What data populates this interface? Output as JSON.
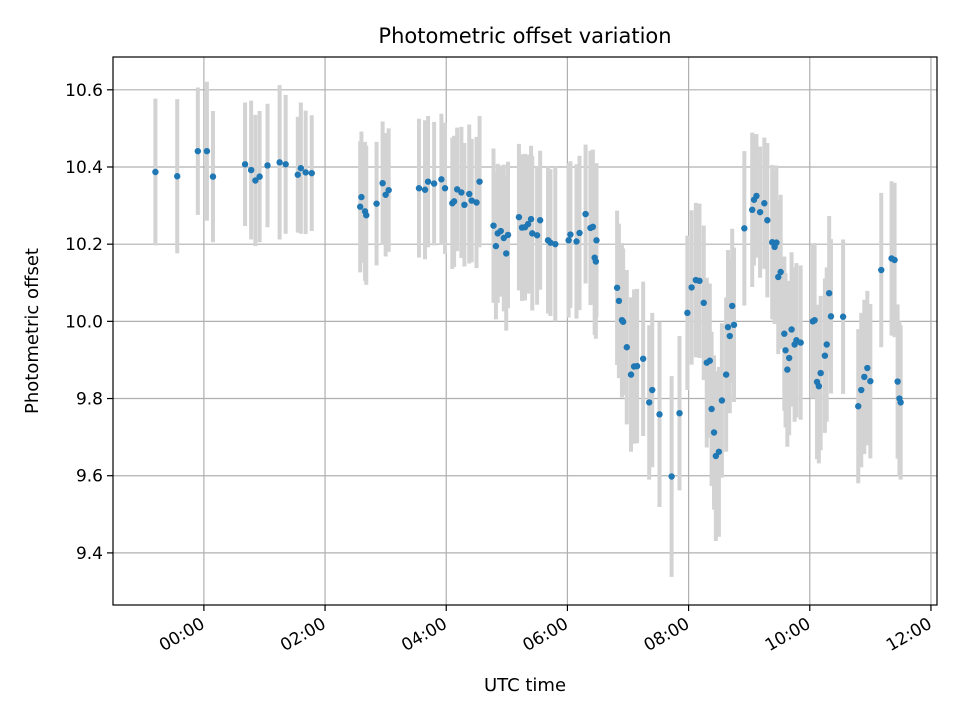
{
  "chart_data": {
    "type": "scatter",
    "title": "Photometric offset variation",
    "xlabel": "UTC time",
    "ylabel": "Photometric offset",
    "x_unit": "UTC hours",
    "xlim": [
      22.5,
      36.1
    ],
    "ylim": [
      9.265,
      10.685
    ],
    "x_ticks": [
      {
        "value": 24,
        "label": "00:00"
      },
      {
        "value": 26,
        "label": "02:00"
      },
      {
        "value": 28,
        "label": "04:00"
      },
      {
        "value": 30,
        "label": "06:00"
      },
      {
        "value": 32,
        "label": "08:00"
      },
      {
        "value": 34,
        "label": "10:00"
      },
      {
        "value": 36,
        "label": "12:00"
      }
    ],
    "y_ticks": [
      {
        "value": 9.4,
        "label": "9.4"
      },
      {
        "value": 9.6,
        "label": "9.6"
      },
      {
        "value": 9.8,
        "label": "9.8"
      },
      {
        "value": 10.0,
        "label": "10.0"
      },
      {
        "value": 10.2,
        "label": "10.2"
      },
      {
        "value": 10.4,
        "label": "10.4"
      },
      {
        "value": 10.6,
        "label": "10.6"
      }
    ],
    "grid": true,
    "marker_color": "#1f77b4",
    "errorbar_color": "#d3d3d3",
    "points": [
      [
        23.2,
        10.387,
        0.19
      ],
      [
        23.56,
        10.376,
        0.2
      ],
      [
        23.9,
        10.441,
        0.165
      ],
      [
        24.05,
        10.441,
        0.18
      ],
      [
        24.15,
        10.375,
        0.17
      ],
      [
        24.68,
        10.407,
        0.16
      ],
      [
        24.78,
        10.392,
        0.18
      ],
      [
        24.85,
        10.365,
        0.17
      ],
      [
        24.92,
        10.375,
        0.17
      ],
      [
        25.05,
        10.404,
        0.16
      ],
      [
        25.25,
        10.412,
        0.2
      ],
      [
        25.35,
        10.407,
        0.18
      ],
      [
        25.55,
        10.38,
        0.15
      ],
      [
        25.6,
        10.397,
        0.17
      ],
      [
        25.68,
        10.386,
        0.16
      ],
      [
        25.78,
        10.384,
        0.15
      ],
      [
        26.58,
        10.297,
        0.17
      ],
      [
        26.6,
        10.322,
        0.17
      ],
      [
        26.66,
        10.285,
        0.18
      ],
      [
        26.68,
        10.275,
        0.18
      ],
      [
        26.85,
        10.305,
        0.16
      ],
      [
        26.95,
        10.358,
        0.16
      ],
      [
        27.0,
        10.328,
        0.16
      ],
      [
        27.05,
        10.34,
        0.16
      ],
      [
        27.55,
        10.345,
        0.18
      ],
      [
        27.65,
        10.341,
        0.18
      ],
      [
        27.7,
        10.362,
        0.17
      ],
      [
        27.8,
        10.357,
        0.16
      ],
      [
        27.92,
        10.368,
        0.17
      ],
      [
        27.98,
        10.345,
        0.17
      ],
      [
        28.1,
        10.306,
        0.17
      ],
      [
        28.13,
        10.311,
        0.17
      ],
      [
        28.18,
        10.342,
        0.16
      ],
      [
        28.25,
        10.334,
        0.17
      ],
      [
        28.3,
        10.302,
        0.16
      ],
      [
        28.38,
        10.33,
        0.18
      ],
      [
        28.42,
        10.313,
        0.16
      ],
      [
        28.5,
        10.308,
        0.17
      ],
      [
        28.55,
        10.362,
        0.17
      ],
      [
        28.78,
        10.248,
        0.2
      ],
      [
        28.82,
        10.195,
        0.19
      ],
      [
        28.85,
        10.228,
        0.18
      ],
      [
        28.9,
        10.234,
        0.17
      ],
      [
        28.95,
        10.216,
        0.19
      ],
      [
        28.99,
        10.176,
        0.2
      ],
      [
        29.02,
        10.224,
        0.19
      ],
      [
        29.2,
        10.27,
        0.19
      ],
      [
        29.25,
        10.243,
        0.19
      ],
      [
        29.3,
        10.244,
        0.19
      ],
      [
        29.35,
        10.252,
        0.18
      ],
      [
        29.4,
        10.265,
        0.19
      ],
      [
        29.42,
        10.228,
        0.2
      ],
      [
        29.5,
        10.223,
        0.18
      ],
      [
        29.55,
        10.262,
        0.18
      ],
      [
        29.68,
        10.21,
        0.19
      ],
      [
        29.72,
        10.204,
        0.19
      ],
      [
        29.8,
        10.2,
        0.2
      ],
      [
        30.02,
        10.21,
        0.2
      ],
      [
        30.05,
        10.225,
        0.19
      ],
      [
        30.15,
        10.207,
        0.2
      ],
      [
        30.2,
        10.229,
        0.2
      ],
      [
        30.3,
        10.278,
        0.18
      ],
      [
        30.38,
        10.242,
        0.2
      ],
      [
        30.42,
        10.245,
        0.2
      ],
      [
        30.45,
        10.165,
        0.2
      ],
      [
        30.47,
        10.155,
        0.2
      ],
      [
        30.48,
        10.21,
        0.2
      ],
      [
        30.82,
        10.087,
        0.2
      ],
      [
        30.85,
        10.053,
        0.2
      ],
      [
        30.9,
        10.003,
        0.2
      ],
      [
        30.92,
        9.999,
        0.19
      ],
      [
        30.98,
        9.933,
        0.2
      ],
      [
        31.05,
        9.862,
        0.2
      ],
      [
        31.1,
        9.883,
        0.2
      ],
      [
        31.15,
        9.884,
        0.2
      ],
      [
        31.25,
        9.903,
        0.2
      ],
      [
        31.35,
        9.79,
        0.2
      ],
      [
        31.4,
        9.822,
        0.2
      ],
      [
        31.52,
        9.759,
        0.24
      ],
      [
        31.72,
        9.598,
        0.26
      ],
      [
        31.85,
        9.762,
        0.2
      ],
      [
        31.98,
        10.022,
        0.2
      ],
      [
        32.05,
        10.088,
        0.2
      ],
      [
        32.12,
        10.107,
        0.2
      ],
      [
        32.18,
        10.105,
        0.2
      ],
      [
        32.25,
        10.048,
        0.2
      ],
      [
        32.3,
        9.893,
        0.22
      ],
      [
        32.35,
        9.898,
        0.2
      ],
      [
        32.38,
        9.773,
        0.2
      ],
      [
        32.42,
        9.712,
        0.2
      ],
      [
        32.45,
        9.651,
        0.22
      ],
      [
        32.5,
        9.662,
        0.22
      ],
      [
        32.55,
        9.795,
        0.2
      ],
      [
        32.62,
        9.862,
        0.2
      ],
      [
        32.65,
        9.985,
        0.2
      ],
      [
        32.68,
        9.962,
        0.2
      ],
      [
        32.72,
        10.04,
        0.2
      ],
      [
        32.75,
        9.991,
        0.2
      ],
      [
        32.92,
        10.241,
        0.2
      ],
      [
        33.05,
        10.289,
        0.2
      ],
      [
        33.08,
        10.315,
        0.17
      ],
      [
        33.12,
        10.325,
        0.16
      ],
      [
        33.18,
        10.283,
        0.17
      ],
      [
        33.25,
        10.306,
        0.17
      ],
      [
        33.3,
        10.262,
        0.2
      ],
      [
        33.38,
        10.205,
        0.2
      ],
      [
        33.42,
        10.193,
        0.2
      ],
      [
        33.45,
        10.204,
        0.2
      ],
      [
        33.48,
        10.115,
        0.2
      ],
      [
        33.52,
        10.128,
        0.2
      ],
      [
        33.58,
        9.968,
        0.2
      ],
      [
        33.6,
        9.925,
        0.2
      ],
      [
        33.63,
        9.875,
        0.2
      ],
      [
        33.66,
        9.905,
        0.2
      ],
      [
        33.7,
        9.979,
        0.2
      ],
      [
        33.75,
        9.94,
        0.2
      ],
      [
        33.78,
        9.951,
        0.2
      ],
      [
        33.85,
        9.945,
        0.2
      ],
      [
        34.05,
        10.0,
        0.2
      ],
      [
        34.08,
        10.003,
        0.2
      ],
      [
        34.12,
        9.843,
        0.2
      ],
      [
        34.15,
        9.832,
        0.2
      ],
      [
        34.18,
        9.866,
        0.2
      ],
      [
        34.25,
        9.911,
        0.2
      ],
      [
        34.28,
        9.94,
        0.2
      ],
      [
        34.32,
        10.073,
        0.2
      ],
      [
        34.35,
        10.013,
        0.2
      ],
      [
        34.55,
        10.012,
        0.2
      ],
      [
        34.8,
        9.78,
        0.2
      ],
      [
        34.85,
        9.822,
        0.2
      ],
      [
        34.9,
        9.856,
        0.2
      ],
      [
        34.95,
        9.879,
        0.2
      ],
      [
        35.0,
        9.845,
        0.2
      ],
      [
        35.18,
        10.133,
        0.2
      ],
      [
        35.35,
        10.163,
        0.2
      ],
      [
        35.4,
        10.159,
        0.2
      ],
      [
        35.45,
        9.844,
        0.2
      ],
      [
        35.48,
        9.8,
        0.2
      ],
      [
        35.5,
        9.79,
        0.2
      ]
    ]
  }
}
